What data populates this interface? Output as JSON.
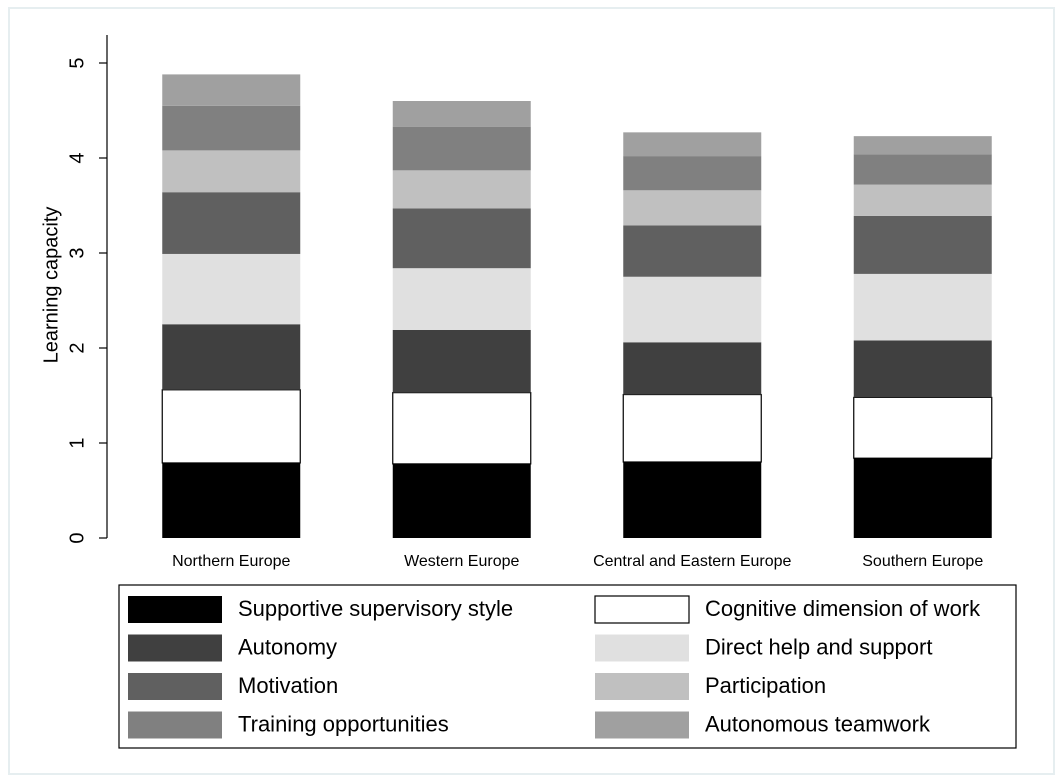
{
  "chart_data": {
    "type": "stacked_bar",
    "y_label": "Learning capacity",
    "categories": [
      "Northern Europe",
      "Western Europe",
      "Central and Eastern Europe",
      "Southern Europe"
    ],
    "series": [
      {
        "name": "Supportive supervisory style",
        "color": "#000000",
        "values": [
          0.79,
          0.78,
          0.8,
          0.84
        ]
      },
      {
        "name": "Cognitive dimension of work",
        "color": "#ffffff",
        "values": [
          0.77,
          0.75,
          0.71,
          0.64
        ]
      },
      {
        "name": "Autonomy",
        "color": "#404040",
        "values": [
          0.69,
          0.66,
          0.55,
          0.6
        ]
      },
      {
        "name": "Direct help and support",
        "color": "#e0e0e0",
        "values": [
          0.74,
          0.65,
          0.69,
          0.7
        ]
      },
      {
        "name": "Motivation",
        "color": "#606060",
        "values": [
          0.65,
          0.63,
          0.54,
          0.61
        ]
      },
      {
        "name": "Participation",
        "color": "#c0c0c0",
        "values": [
          0.44,
          0.4,
          0.37,
          0.33
        ]
      },
      {
        "name": "Training opportunities",
        "color": "#808080",
        "values": [
          0.47,
          0.46,
          0.36,
          0.32
        ]
      },
      {
        "name": "Autonomous teamwork",
        "color": "#a0a0a0",
        "values": [
          0.33,
          0.27,
          0.25,
          0.19
        ]
      }
    ],
    "ylim": [
      0,
      5
    ],
    "yticks": [
      0,
      1,
      2,
      3,
      4,
      5
    ],
    "grid": false,
    "legend": "bottom"
  }
}
